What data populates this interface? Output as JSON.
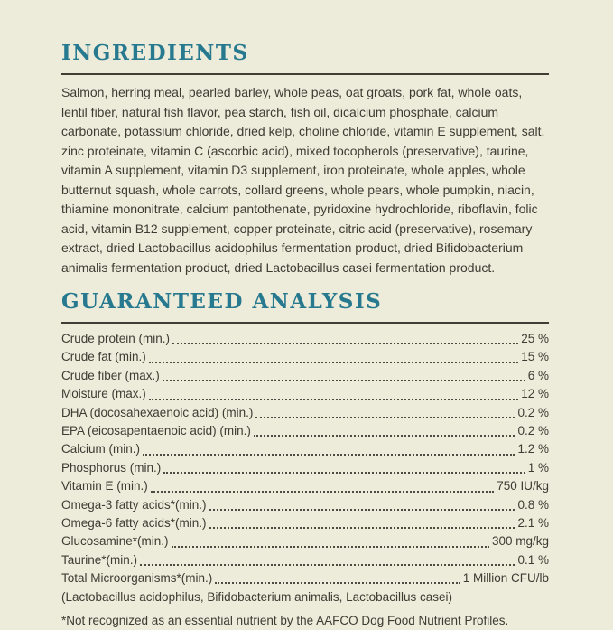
{
  "theme": {
    "background_color": "#edebd9",
    "heading_color": "#26798f",
    "text_color": "#3d3c33",
    "rule_color": "#403f35"
  },
  "ingredients": {
    "title": "INGREDIENTS",
    "text": "Salmon, herring meal, pearled barley, whole peas, oat groats, pork fat, whole oats, lentil fiber, natural fish flavor, pea starch, fish oil, dicalcium phosphate, calcium carbonate, potassium chloride, dried kelp, choline chloride, vitamin E supplement, salt, zinc proteinate, vitamin C (ascorbic acid), mixed tocopherols (preservative), taurine, vitamin A supplement, vitamin D3 supplement, iron proteinate, whole apples, whole butternut squash, whole carrots, collard greens, whole pears, whole pumpkin, niacin, thiamine mononitrate, calcium pantothenate, pyridoxine hydrochloride, riboflavin, folic acid, vitamin B12 supplement, copper proteinate, citric acid (preservative), rosemary extract, dried Lactobacillus acidophilus fermentation product, dried Bifidobacterium animalis fermentation product, dried Lactobacillus casei fermentation product."
  },
  "guaranteed_analysis": {
    "title": "GUARANTEED ANALYSIS",
    "rows": [
      {
        "label": "Crude protein (min.)",
        "value": "25 %"
      },
      {
        "label": "Crude fat (min.)",
        "value": "15 %"
      },
      {
        "label": "Crude fiber (max.)",
        "value": "6 %"
      },
      {
        "label": "Moisture (max.)",
        "value": "12 %"
      },
      {
        "label": "DHA (docosahexaenoic acid) (min.)",
        "value": "0.2 %"
      },
      {
        "label": "EPA (eicosapentaenoic acid) (min.)",
        "value": "0.2 %"
      },
      {
        "label": "Calcium (min.)",
        "value": "1.2 %"
      },
      {
        "label": "Phosphorus (min.)",
        "value": "1 %"
      },
      {
        "label": "Vitamin E (min.)",
        "value": "750 IU/kg"
      },
      {
        "label": "Omega-3 fatty acids*(min.)",
        "value": "0.8 %"
      },
      {
        "label": "Omega-6 fatty acids*(min.)",
        "value": "2.1 %"
      },
      {
        "label": "Glucosamine*(min.)",
        "value": "300 mg/kg"
      },
      {
        "label": "Taurine*(min.)",
        "value": "0.1 %"
      },
      {
        "label": "Total Microorganisms*(min.)",
        "value": "1 Million CFU/lb"
      }
    ],
    "microorganisms_note": "(Lactobacillus acidophilus, Bifidobacterium animalis, Lactobacillus casei)",
    "footnote": "*Not recognized as an essential nutrient by the AAFCO Dog Food Nutrient Profiles."
  }
}
